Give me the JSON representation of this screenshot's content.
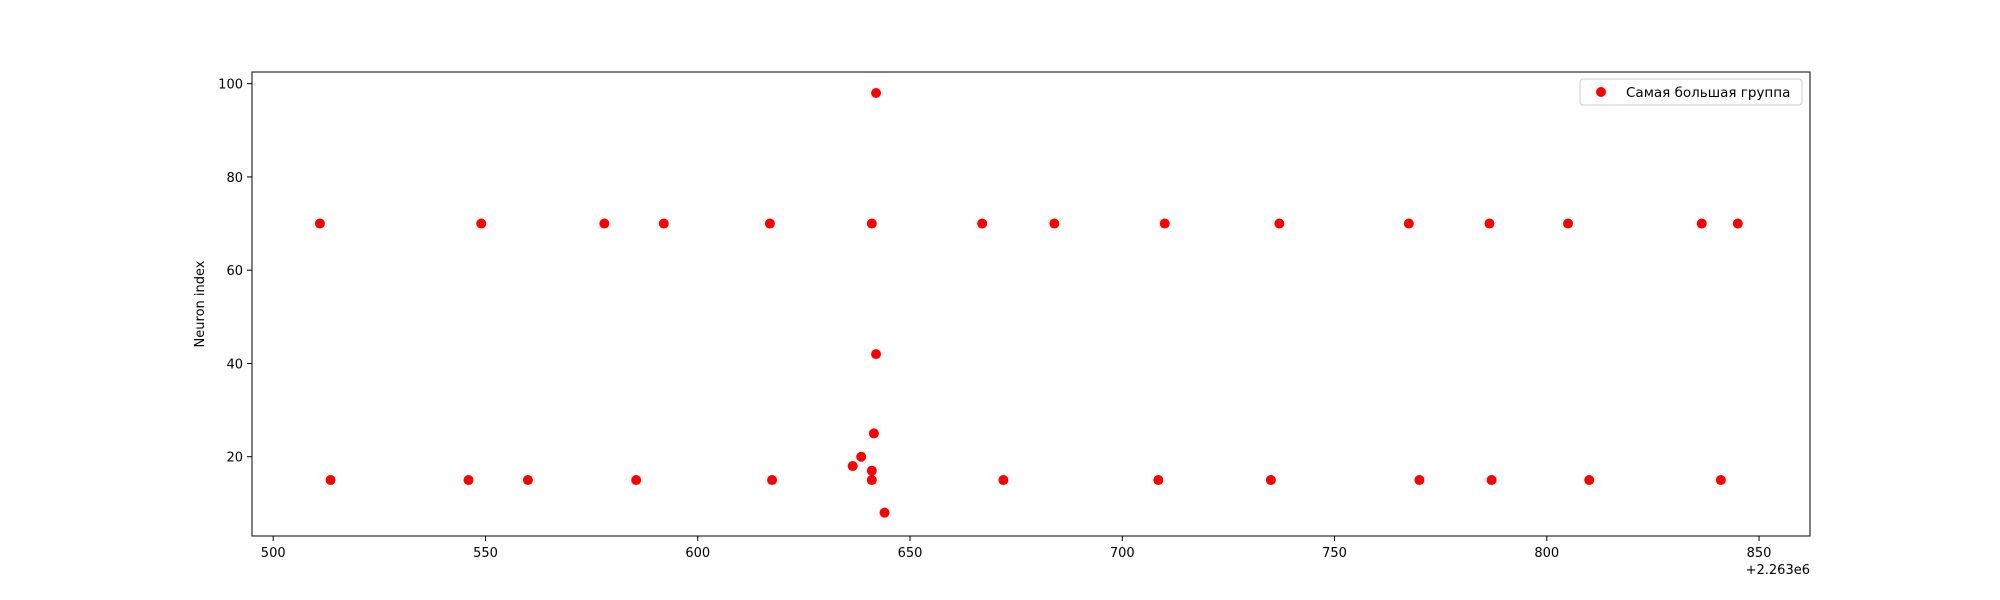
{
  "chart_data": {
    "type": "scatter",
    "title": "",
    "xlabel": "",
    "ylabel": "Neuron index",
    "x_offset_label": "+2.263e6",
    "x_ticks": [
      "500",
      "550",
      "600",
      "650",
      "700",
      "750",
      "800",
      "850"
    ],
    "y_ticks": [
      "20",
      "40",
      "60",
      "80",
      "100"
    ],
    "grid": false,
    "legend_position": "top-right",
    "xlim": [
      2263495,
      2263862
    ],
    "ylim": [
      3,
      102.5
    ],
    "series": [
      {
        "name": "Самая большая группа",
        "color": "#ff0000",
        "x": [
          2263511,
          2263549,
          2263578,
          2263592,
          2263617,
          2263641,
          2263667,
          2263684,
          2263710,
          2263737,
          2263767.5,
          2263786.5,
          2263805,
          2263836.5,
          2263845,
          2263513.5,
          2263546,
          2263560,
          2263585.5,
          2263617.5,
          2263641,
          2263672,
          2263708.5,
          2263735,
          2263770,
          2263787,
          2263810,
          2263841,
          2263642,
          2263642,
          2263641.5,
          2263638.5,
          2263636.5,
          2263641,
          2263644
        ],
        "y": [
          70,
          70,
          70,
          70,
          70,
          70,
          70,
          70,
          70,
          70,
          70,
          70,
          70,
          70,
          70,
          15,
          15,
          15,
          15,
          15,
          15,
          15,
          15,
          15,
          15,
          15,
          15,
          15,
          98,
          42,
          25,
          20,
          18,
          17,
          8
        ]
      }
    ]
  }
}
